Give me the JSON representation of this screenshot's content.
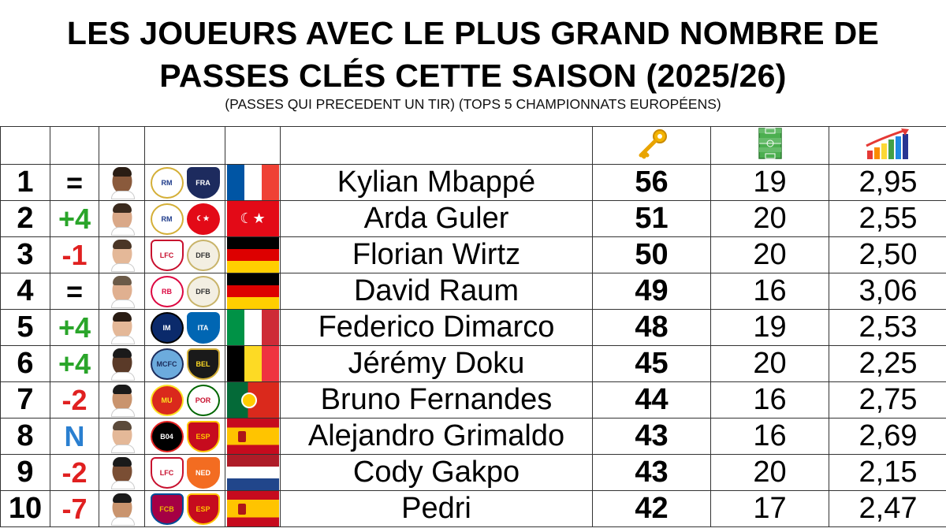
{
  "title": {
    "line1": "LES JOUEURS AVEC LE PLUS GRAND NOMBRE DE",
    "line2": "PASSES CLÉS CETTE SAISON (2025/26)",
    "subtitle": "(PASSES QUI PRECEDENT UN TIR) (TOPS 5 CHAMPIONNATS EUROPÉENS)"
  },
  "header_icons": {
    "key_passes": "key-icon",
    "matches": "pitch-icon",
    "per_match": "bar-chart-up-icon"
  },
  "colors": {
    "up": "#2aa52a",
    "down": "#e02020",
    "new": "#2a7fd0",
    "same": "#000000"
  },
  "rows": [
    {
      "rank": "1",
      "move": "=",
      "move_type": "same",
      "name": "Kylian Mbappé",
      "key_passes": "56",
      "matches": "19",
      "per_match": "2,95",
      "club_badge": "real-madrid-badge-icon",
      "nation_badge": "france-badge-icon",
      "flag": "france-flag-icon"
    },
    {
      "rank": "2",
      "move": "+4",
      "move_type": "up",
      "name": "Arda Guler",
      "key_passes": "51",
      "matches": "20",
      "per_match": "2,55",
      "club_badge": "real-madrid-badge-icon",
      "nation_badge": "turkey-badge-icon",
      "flag": "turkey-flag-icon"
    },
    {
      "rank": "3",
      "move": "-1",
      "move_type": "down",
      "name": "Florian Wirtz",
      "key_passes": "50",
      "matches": "20",
      "per_match": "2,50",
      "club_badge": "liverpool-badge-icon",
      "nation_badge": "germany-badge-icon",
      "flag": "germany-flag-icon"
    },
    {
      "rank": "4",
      "move": "=",
      "move_type": "same",
      "name": "David Raum",
      "key_passes": "49",
      "matches": "16",
      "per_match": "3,06",
      "club_badge": "rb-leipzig-badge-icon",
      "nation_badge": "germany-badge-icon",
      "flag": "germany-flag-icon"
    },
    {
      "rank": "5",
      "move": "+4",
      "move_type": "up",
      "name": "Federico Dimarco",
      "key_passes": "48",
      "matches": "19",
      "per_match": "2,53",
      "club_badge": "inter-badge-icon",
      "nation_badge": "italy-badge-icon",
      "flag": "italy-flag-icon"
    },
    {
      "rank": "6",
      "move": "+4",
      "move_type": "up",
      "name": "Jérémy Doku",
      "key_passes": "45",
      "matches": "20",
      "per_match": "2,25",
      "club_badge": "manchester-city-badge-icon",
      "nation_badge": "belgium-badge-icon",
      "flag": "belgium-flag-icon"
    },
    {
      "rank": "7",
      "move": "-2",
      "move_type": "down",
      "name": "Bruno Fernandes",
      "key_passes": "44",
      "matches": "16",
      "per_match": "2,75",
      "club_badge": "manchester-united-badge-icon",
      "nation_badge": "portugal-badge-icon",
      "flag": "portugal-flag-icon"
    },
    {
      "rank": "8",
      "move": "N",
      "move_type": "new",
      "name": "Alejandro Grimaldo",
      "key_passes": "43",
      "matches": "16",
      "per_match": "2,69",
      "club_badge": "bayer-leverkusen-badge-icon",
      "nation_badge": "spain-badge-icon",
      "flag": "spain-flag-icon"
    },
    {
      "rank": "9",
      "move": "-2",
      "move_type": "down",
      "name": "Cody Gakpo",
      "key_passes": "43",
      "matches": "20",
      "per_match": "2,15",
      "club_badge": "liverpool-badge-icon",
      "nation_badge": "netherlands-badge-icon",
      "flag": "netherlands-flag-icon"
    },
    {
      "rank": "10",
      "move": "-7",
      "move_type": "down",
      "name": "Pedri",
      "key_passes": "42",
      "matches": "17",
      "per_match": "2,47",
      "club_badge": "barcelona-badge-icon",
      "nation_badge": "spain-badge-icon",
      "flag": "spain-flag-icon"
    }
  ]
}
